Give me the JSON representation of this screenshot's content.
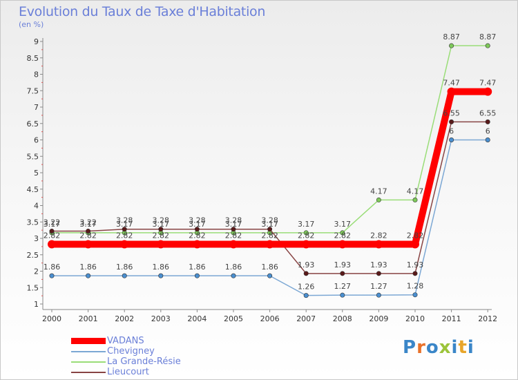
{
  "chart_data": {
    "type": "line",
    "title": "Evolution du Taux de Taxe d'Habitation",
    "subtitle": "(en %)",
    "categories": [
      "2000",
      "2001",
      "2002",
      "2003",
      "2004",
      "2005",
      "2006",
      "2007",
      "2008",
      "2009",
      "2010",
      "2011",
      "2012"
    ],
    "ylim": [
      1,
      9
    ],
    "yticks": [
      "1",
      "1.5",
      "2",
      "2.5",
      "3",
      "3.5",
      "4",
      "4.5",
      "5",
      "5.5",
      "6",
      "6.5",
      "7",
      "7.5",
      "8",
      "8.5",
      "9"
    ],
    "grid": false,
    "legend_position": "bottom-left",
    "series": [
      {
        "name": "VADANS",
        "color": "#ff0000",
        "values": [
          2.82,
          2.82,
          2.82,
          2.82,
          2.82,
          2.82,
          2.82,
          2.82,
          2.82,
          2.82,
          2.82,
          7.47,
          7.47
        ],
        "labels": [
          "2.82",
          "2.82",
          "2.82",
          "2.82",
          "2.82",
          "2.82",
          "2.82",
          "2.82",
          "2.82",
          "2.82",
          "2.82",
          "7.47",
          "7.47"
        ]
      },
      {
        "name": "Chevigney",
        "color": "#7ba7d4",
        "values": [
          1.86,
          1.86,
          1.86,
          1.86,
          1.86,
          1.86,
          1.86,
          1.26,
          1.27,
          1.27,
          1.28,
          6,
          6
        ],
        "labels": [
          "1.86",
          "1.86",
          "1.86",
          "1.86",
          "1.86",
          "1.86",
          "1.86",
          "1.26",
          "1.27",
          "1.27",
          "1.28",
          "6",
          "6"
        ]
      },
      {
        "name": "La Grande-Résie",
        "color": "#99dd77",
        "values": [
          3.17,
          3.17,
          3.17,
          3.17,
          3.17,
          3.17,
          3.17,
          3.17,
          3.17,
          4.17,
          4.17,
          8.87,
          8.87
        ],
        "labels": [
          "3.17",
          "3.17",
          "3.17",
          "3.17",
          "3.17",
          "3.17",
          "3.17",
          "3.17",
          "3.17",
          "4.17",
          "4.17",
          "8.87",
          "8.87"
        ]
      },
      {
        "name": "Lieucourt",
        "color": "#884444",
        "values": [
          3.22,
          3.22,
          3.28,
          3.28,
          3.28,
          3.28,
          3.28,
          1.93,
          1.93,
          1.93,
          1.93,
          6.55,
          6.55
        ],
        "labels": [
          "3.22",
          "3.22",
          "3.28",
          "3.28",
          "3.28",
          "3.28",
          "3.28",
          "1.93",
          "1.93",
          "1.93",
          "1.93",
          "6.55",
          "6.55"
        ]
      }
    ]
  },
  "legend": {
    "items": [
      {
        "label": "VADANS",
        "color": "#ff0000"
      },
      {
        "label": "Chevigney",
        "color": "#7ba7d4"
      },
      {
        "label": "La Grande-Résie",
        "color": "#99dd77"
      },
      {
        "label": "Lieucourt",
        "color": "#884444"
      }
    ]
  },
  "logo": {
    "letters": [
      "P",
      "r",
      "o",
      "x",
      "i",
      "t",
      "i"
    ],
    "colors": [
      "#3a86c8",
      "#e8712a",
      "#3a86c8",
      "#9cc43a",
      "#3a86c8",
      "#e8a52a",
      "#3a86c8"
    ]
  }
}
